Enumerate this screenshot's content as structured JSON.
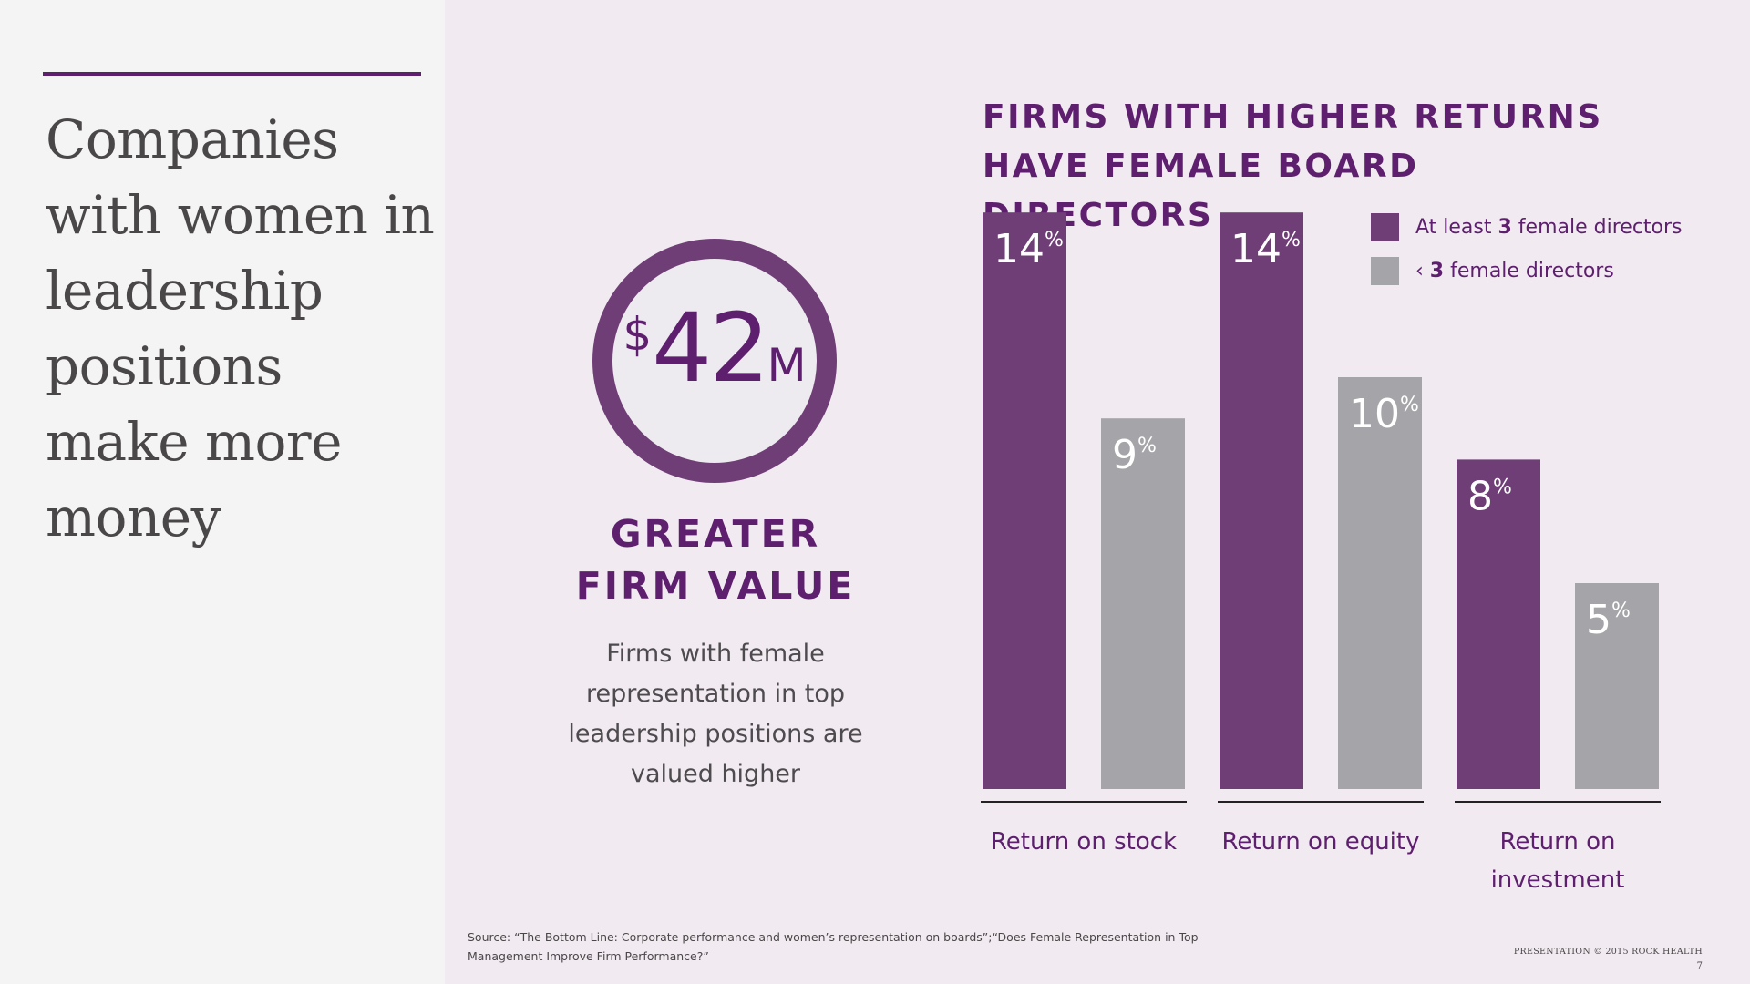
{
  "headline": "Companies with women in leadership positions make more money",
  "stat": {
    "currency": "$",
    "value": "42",
    "unit": "M",
    "label": "GREATER FIRM VALUE",
    "description": "Firms with female representation in top leadership positions are valued higher"
  },
  "colors": {
    "accent": "#5e1f6e",
    "series_primary": "#703e77",
    "series_secondary": "#a5a4a8",
    "background": "#f1eaf1",
    "panel": "#f5f4f5"
  },
  "chart_data": {
    "type": "bar",
    "title": "FIRMS WITH HIGHER RETURNS HAVE FEMALE BOARD DIRECTORS",
    "categories": [
      "Return on stock",
      "Return on equity",
      "Return on investment"
    ],
    "series": [
      {
        "name": "At least 3 female directors",
        "values": [
          14,
          14,
          8
        ]
      },
      {
        "name": "‹ 3 female directors",
        "values": [
          9,
          10,
          5
        ]
      }
    ],
    "value_suffix": "%",
    "legend_position": "top-right",
    "grid": false
  },
  "legend": [
    {
      "prefix": "At least ",
      "count": "3",
      "suffix": " female directors"
    },
    {
      "prefix": "‹ ",
      "count": "3",
      "suffix": " female directors"
    }
  ],
  "source": "Source: “The Bottom Line: Corporate performance and women’s representation on boards”;“Does Female Representation in Top Management Improve Firm Performance?”",
  "footer": {
    "credit": "PRESENTATION © 2015 ROCK HEALTH",
    "page": "7"
  }
}
